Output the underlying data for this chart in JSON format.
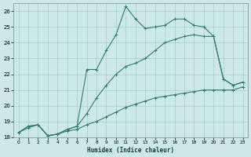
{
  "xlabel": "Humidex (Indice chaleur)",
  "bg_color": "#cce8e8",
  "grid_color": "#aacccc",
  "line_color": "#2e7d6e",
  "xlim": [
    -0.5,
    23.5
  ],
  "ylim": [
    18,
    26.5
  ],
  "xticks": [
    0,
    1,
    2,
    3,
    4,
    5,
    6,
    7,
    8,
    9,
    10,
    11,
    12,
    13,
    14,
    15,
    16,
    17,
    18,
    19,
    20,
    21,
    22,
    23
  ],
  "yticks": [
    18,
    19,
    20,
    21,
    22,
    23,
    24,
    25,
    26
  ],
  "series1_x": [
    0,
    1,
    2,
    3,
    4,
    5,
    6,
    7,
    8,
    9,
    10,
    11,
    12,
    13,
    14,
    15,
    16,
    17,
    18,
    19,
    20,
    21,
    22,
    23
  ],
  "series1_y": [
    18.3,
    18.7,
    18.8,
    18.1,
    18.2,
    18.5,
    18.7,
    22.3,
    22.3,
    23.5,
    24.5,
    26.3,
    25.5,
    24.9,
    25.0,
    25.1,
    25.5,
    25.5,
    25.1,
    25.0,
    24.4,
    21.7,
    21.3,
    21.5
  ],
  "series2_x": [
    0,
    1,
    2,
    3,
    4,
    5,
    6,
    7,
    8,
    9,
    10,
    11,
    12,
    13,
    14,
    15,
    16,
    17,
    18,
    19,
    20,
    21,
    22,
    23
  ],
  "series2_y": [
    18.3,
    18.7,
    18.8,
    18.1,
    18.2,
    18.5,
    18.7,
    19.5,
    20.5,
    21.3,
    22.0,
    22.5,
    22.7,
    23.0,
    23.5,
    24.0,
    24.2,
    24.4,
    24.5,
    24.4,
    24.4,
    21.7,
    21.3,
    21.5
  ],
  "series3_x": [
    0,
    1,
    2,
    3,
    4,
    5,
    6,
    7,
    8,
    9,
    10,
    11,
    12,
    13,
    14,
    15,
    16,
    17,
    18,
    19,
    20,
    21,
    22,
    23
  ],
  "series3_y": [
    18.3,
    18.6,
    18.8,
    18.1,
    18.2,
    18.4,
    18.5,
    18.8,
    19.0,
    19.3,
    19.6,
    19.9,
    20.1,
    20.3,
    20.5,
    20.6,
    20.7,
    20.8,
    20.9,
    21.0,
    21.0,
    21.0,
    21.0,
    21.2
  ]
}
